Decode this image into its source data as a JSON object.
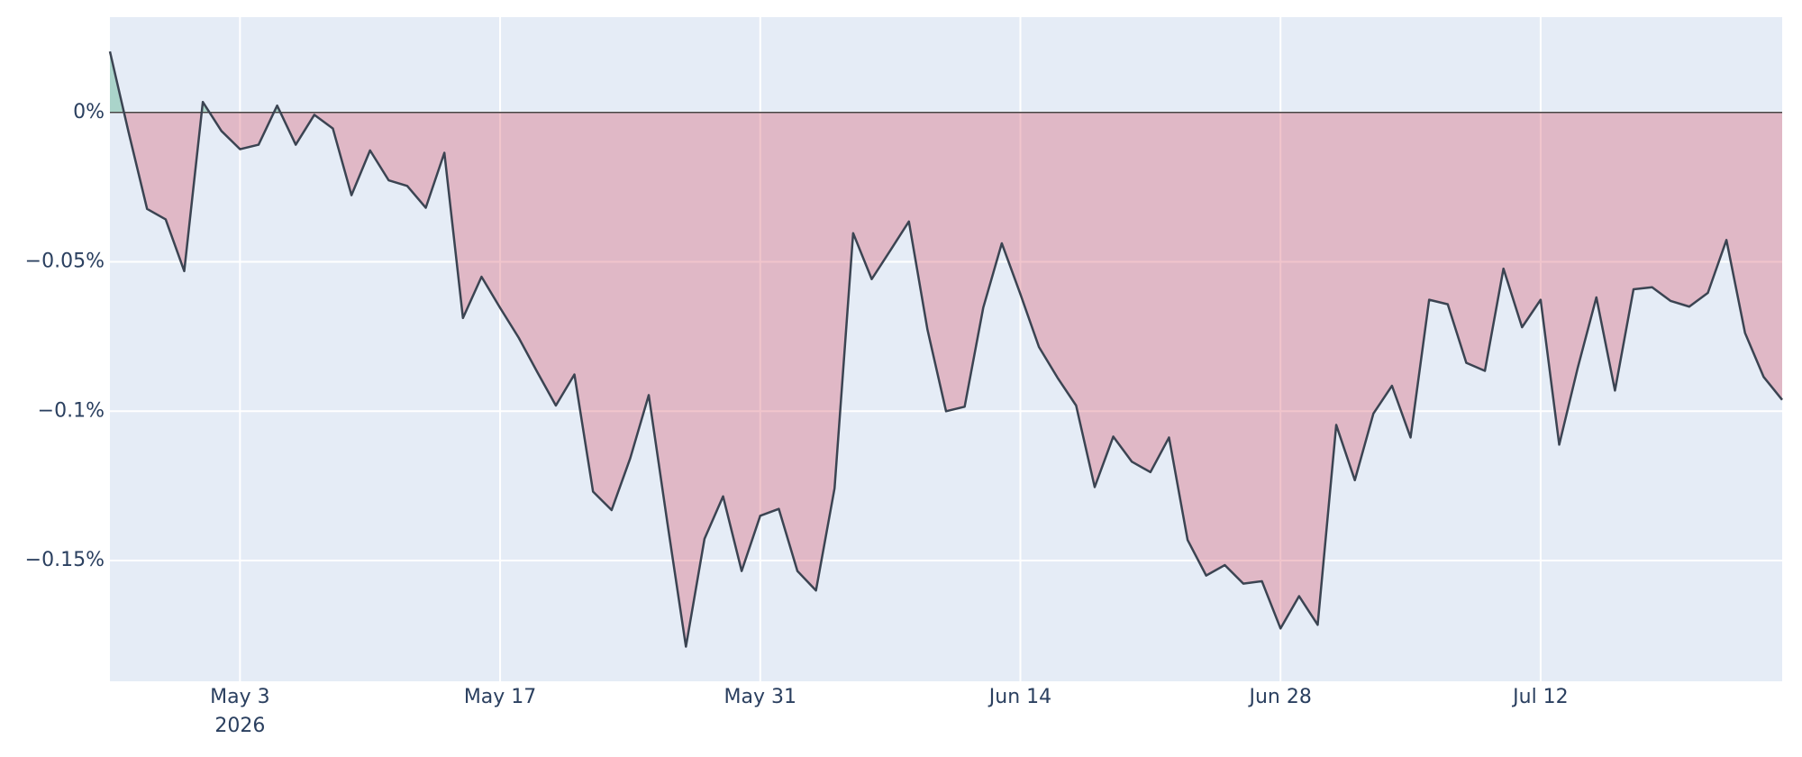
{
  "chart_data": {
    "type": "area",
    "x": [
      "2026-04-26",
      "2026-04-27",
      "2026-04-28",
      "2026-04-29",
      "2026-04-30",
      "2026-05-01",
      "2026-05-02",
      "2026-05-03",
      "2026-05-04",
      "2026-05-05",
      "2026-05-06",
      "2026-05-07",
      "2026-05-08",
      "2026-05-09",
      "2026-05-10",
      "2026-05-11",
      "2026-05-12",
      "2026-05-13",
      "2026-05-14",
      "2026-05-15",
      "2026-05-16",
      "2026-05-17",
      "2026-05-18",
      "2026-05-19",
      "2026-05-20",
      "2026-05-21",
      "2026-05-22",
      "2026-05-23",
      "2026-05-24",
      "2026-05-25",
      "2026-05-26",
      "2026-05-27",
      "2026-05-28",
      "2026-05-29",
      "2026-05-30",
      "2026-05-31",
      "2026-06-01",
      "2026-06-02",
      "2026-06-03",
      "2026-06-04",
      "2026-06-05",
      "2026-06-06",
      "2026-06-07",
      "2026-06-08",
      "2026-06-09",
      "2026-06-10",
      "2026-06-11",
      "2026-06-12",
      "2026-06-13",
      "2026-06-14",
      "2026-06-15",
      "2026-06-16",
      "2026-06-17",
      "2026-06-18",
      "2026-06-19",
      "2026-06-20",
      "2026-06-21",
      "2026-06-22",
      "2026-06-23",
      "2026-06-24",
      "2026-06-25",
      "2026-06-26",
      "2026-06-27",
      "2026-06-28",
      "2026-06-29",
      "2026-06-30",
      "2026-07-01",
      "2026-07-02",
      "2026-07-03",
      "2026-07-04",
      "2026-07-05",
      "2026-07-06",
      "2026-07-07",
      "2026-07-08",
      "2026-07-09",
      "2026-07-10",
      "2026-07-11",
      "2026-07-12",
      "2026-07-13",
      "2026-07-14",
      "2026-07-15",
      "2026-07-16",
      "2026-07-17",
      "2026-07-18",
      "2026-07-19",
      "2026-07-20",
      "2026-07-21",
      "2026-07-22",
      "2026-07-23",
      "2026-07-24",
      "2026-07-25"
    ],
    "values": [
      0.0204,
      -0.0065,
      -0.0323,
      -0.0358,
      -0.0531,
      0.0035,
      -0.0062,
      -0.0123,
      -0.0108,
      0.0023,
      -0.0108,
      -0.0008,
      -0.0054,
      -0.0277,
      -0.0127,
      -0.0227,
      -0.0246,
      -0.0319,
      -0.0135,
      -0.0688,
      -0.055,
      -0.0654,
      -0.0754,
      -0.0869,
      -0.0981,
      -0.0877,
      -0.1269,
      -0.1331,
      -0.1158,
      -0.0946,
      -0.1373,
      -0.1788,
      -0.1427,
      -0.1285,
      -0.1535,
      -0.135,
      -0.1327,
      -0.1535,
      -0.16,
      -0.1258,
      -0.0404,
      -0.0558,
      -0.0462,
      -0.0365,
      -0.0727,
      -0.1,
      -0.0985,
      -0.0654,
      -0.0438,
      -0.0608,
      -0.0785,
      -0.0888,
      -0.0981,
      -0.1254,
      -0.1085,
      -0.1169,
      -0.1204,
      -0.1088,
      -0.1431,
      -0.155,
      -0.1515,
      -0.1577,
      -0.1569,
      -0.1727,
      -0.1619,
      -0.1715,
      -0.1046,
      -0.1231,
      -0.1008,
      -0.0915,
      -0.1088,
      -0.0627,
      -0.0642,
      -0.0838,
      -0.0865,
      -0.0523,
      -0.0719,
      -0.0627,
      -0.1112,
      -0.0854,
      -0.0619,
      -0.0931,
      -0.0592,
      -0.0585,
      -0.0631,
      -0.065,
      -0.0604,
      -0.0427,
      -0.0738,
      -0.0885,
      -0.0962
    ],
    "line_color": "#3b4452",
    "positive_fill": "rgba(60,170,120,0.35)",
    "negative_fill": "rgba(214,90,110,0.35)",
    "xlim": [
      "2026-04-26",
      "2026-07-25"
    ],
    "xticks": [
      {
        "value": "2026-05-03",
        "label": "May 3",
        "sublabel": "2026"
      },
      {
        "value": "2026-05-17",
        "label": "May 17"
      },
      {
        "value": "2026-05-31",
        "label": "May 31"
      },
      {
        "value": "2026-06-14",
        "label": "Jun 14"
      },
      {
        "value": "2026-06-28",
        "label": "Jun 28"
      },
      {
        "value": "2026-07-12",
        "label": "Jul 12"
      }
    ],
    "ylim": [
      -0.1904,
      0.0319
    ],
    "yticks": [
      {
        "value": 0,
        "label": "0%"
      },
      {
        "value": -0.05,
        "label": "−0.05%"
      },
      {
        "value": -0.1,
        "label": "−0.1%"
      },
      {
        "value": -0.15,
        "label": "−0.15%"
      }
    ],
    "grid": true
  }
}
